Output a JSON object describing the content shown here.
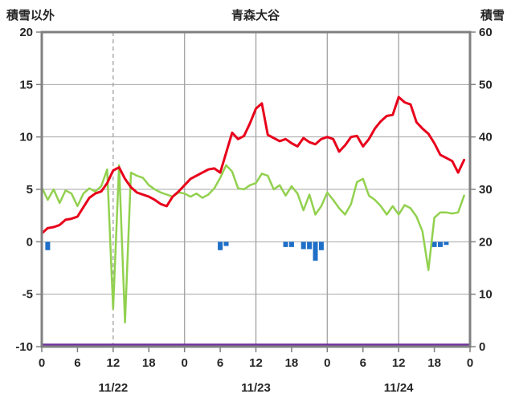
{
  "header": {
    "left_label": "積雪以外",
    "title": "青森大谷",
    "right_label": "積雪"
  },
  "chart_data": {
    "type": "line",
    "title": "青森大谷",
    "left_axis": {
      "label": "積雪以外",
      "min": -10,
      "max": 20,
      "ticks": [
        20,
        15,
        10,
        5,
        0,
        -5,
        -10
      ]
    },
    "right_axis": {
      "label": "積雪",
      "min": 0,
      "max": 60,
      "ticks": [
        60,
        50,
        40,
        30,
        20,
        10,
        0
      ]
    },
    "x_axis": {
      "hours_total": 72,
      "hour_ticks": [
        0,
        6,
        12,
        18,
        24,
        30,
        36,
        42,
        48,
        54,
        60,
        66,
        72
      ],
      "hour_tick_labels": [
        "0",
        "6",
        "12",
        "18",
        "0",
        "6",
        "12",
        "18",
        "0",
        "6",
        "12",
        "18",
        "0"
      ],
      "date_labels": [
        {
          "text": "11/22",
          "hour": 12
        },
        {
          "text": "11/23",
          "hour": 36
        },
        {
          "text": "11/24",
          "hour": 60
        }
      ]
    },
    "grid": {
      "hlines": [
        15,
        10,
        5,
        0,
        -5
      ],
      "vlines": [
        {
          "hour": 12,
          "dash": true
        },
        {
          "hour": 24,
          "dash": false
        },
        {
          "hour": 36,
          "dash": false
        },
        {
          "hour": 48,
          "dash": false
        },
        {
          "hour": 60,
          "dash": false
        }
      ]
    },
    "colors": {
      "red": "#e8001b",
      "green": "#92d14f",
      "blue": "#1f6fc8",
      "purple": "#7030a0",
      "grid": "#a6a6a6",
      "frame": "#808080",
      "text": "#262626",
      "background": "#ffffff"
    },
    "series": [
      {
        "name": "blue_bars",
        "type": "bar",
        "axis": "left",
        "color": "#1f6fc8",
        "values": [
          0,
          -0.8,
          0,
          0,
          0,
          0,
          0,
          0,
          0,
          0,
          0,
          0,
          0,
          0,
          0,
          0,
          0,
          0,
          0,
          0,
          0,
          0,
          0,
          0,
          0,
          0,
          0,
          0,
          0,
          0,
          -0.8,
          -0.4,
          0,
          0,
          0,
          0,
          0,
          0,
          0,
          0,
          0,
          -0.5,
          -0.5,
          0,
          -0.7,
          -0.7,
          -1.8,
          -0.8,
          0,
          0,
          0,
          0,
          0,
          0,
          0,
          0,
          0,
          0,
          0,
          0,
          0,
          0,
          0,
          0,
          0,
          0,
          -0.5,
          -0.5,
          -0.3,
          0,
          0,
          0
        ]
      },
      {
        "name": "green_line",
        "type": "line",
        "axis": "left",
        "color": "#92d14f",
        "width": 2.5,
        "values": [
          5.2,
          4.0,
          5.0,
          3.7,
          4.9,
          4.6,
          3.4,
          4.6,
          5.1,
          4.8,
          5.3,
          6.9,
          -6.4,
          7.3,
          -7.7,
          6.6,
          6.3,
          6.1,
          5.4,
          5.0,
          4.7,
          4.5,
          4.3,
          4.7,
          4.6,
          4.3,
          4.6,
          4.2,
          4.5,
          5.1,
          6.1,
          7.3,
          6.7,
          5.1,
          5.0,
          5.4,
          5.6,
          6.5,
          6.3,
          5.0,
          5.4,
          4.4,
          5.3,
          4.6,
          3.0,
          4.5,
          2.6,
          3.4,
          4.7,
          4.0,
          3.2,
          2.6,
          3.6,
          5.7,
          6.0,
          4.4,
          4.0,
          3.4,
          2.6,
          3.4,
          2.6,
          3.5,
          3.2,
          2.4,
          1.0,
          -2.7,
          2.3,
          2.8,
          2.8,
          2.7,
          2.8,
          4.4
        ]
      },
      {
        "name": "red_line",
        "type": "line",
        "axis": "left",
        "color": "#e8001b",
        "width": 3,
        "values": [
          0.8,
          1.3,
          1.4,
          1.6,
          2.1,
          2.2,
          2.4,
          3.3,
          4.2,
          4.6,
          4.8,
          5.6,
          6.8,
          7.1,
          6.0,
          5.2,
          4.7,
          4.5,
          4.3,
          4.0,
          3.6,
          3.4,
          4.3,
          4.8,
          5.4,
          6.0,
          6.3,
          6.6,
          6.9,
          7.0,
          6.6,
          8.5,
          10.4,
          9.8,
          10.1,
          11.3,
          12.7,
          13.2,
          10.2,
          9.9,
          9.6,
          9.8,
          9.4,
          9.1,
          9.9,
          9.5,
          9.3,
          9.8,
          10.0,
          9.8,
          8.6,
          9.2,
          10.0,
          10.1,
          9.1,
          9.8,
          10.8,
          11.5,
          12.0,
          12.1,
          13.8,
          13.3,
          13.1,
          11.4,
          10.8,
          10.3,
          9.4,
          8.3,
          8.0,
          7.7,
          6.6,
          7.8
        ]
      },
      {
        "name": "purple_line",
        "type": "constant-line",
        "axis": "right",
        "color": "#7030a0",
        "width": 2.5,
        "constant": 0
      }
    ]
  }
}
